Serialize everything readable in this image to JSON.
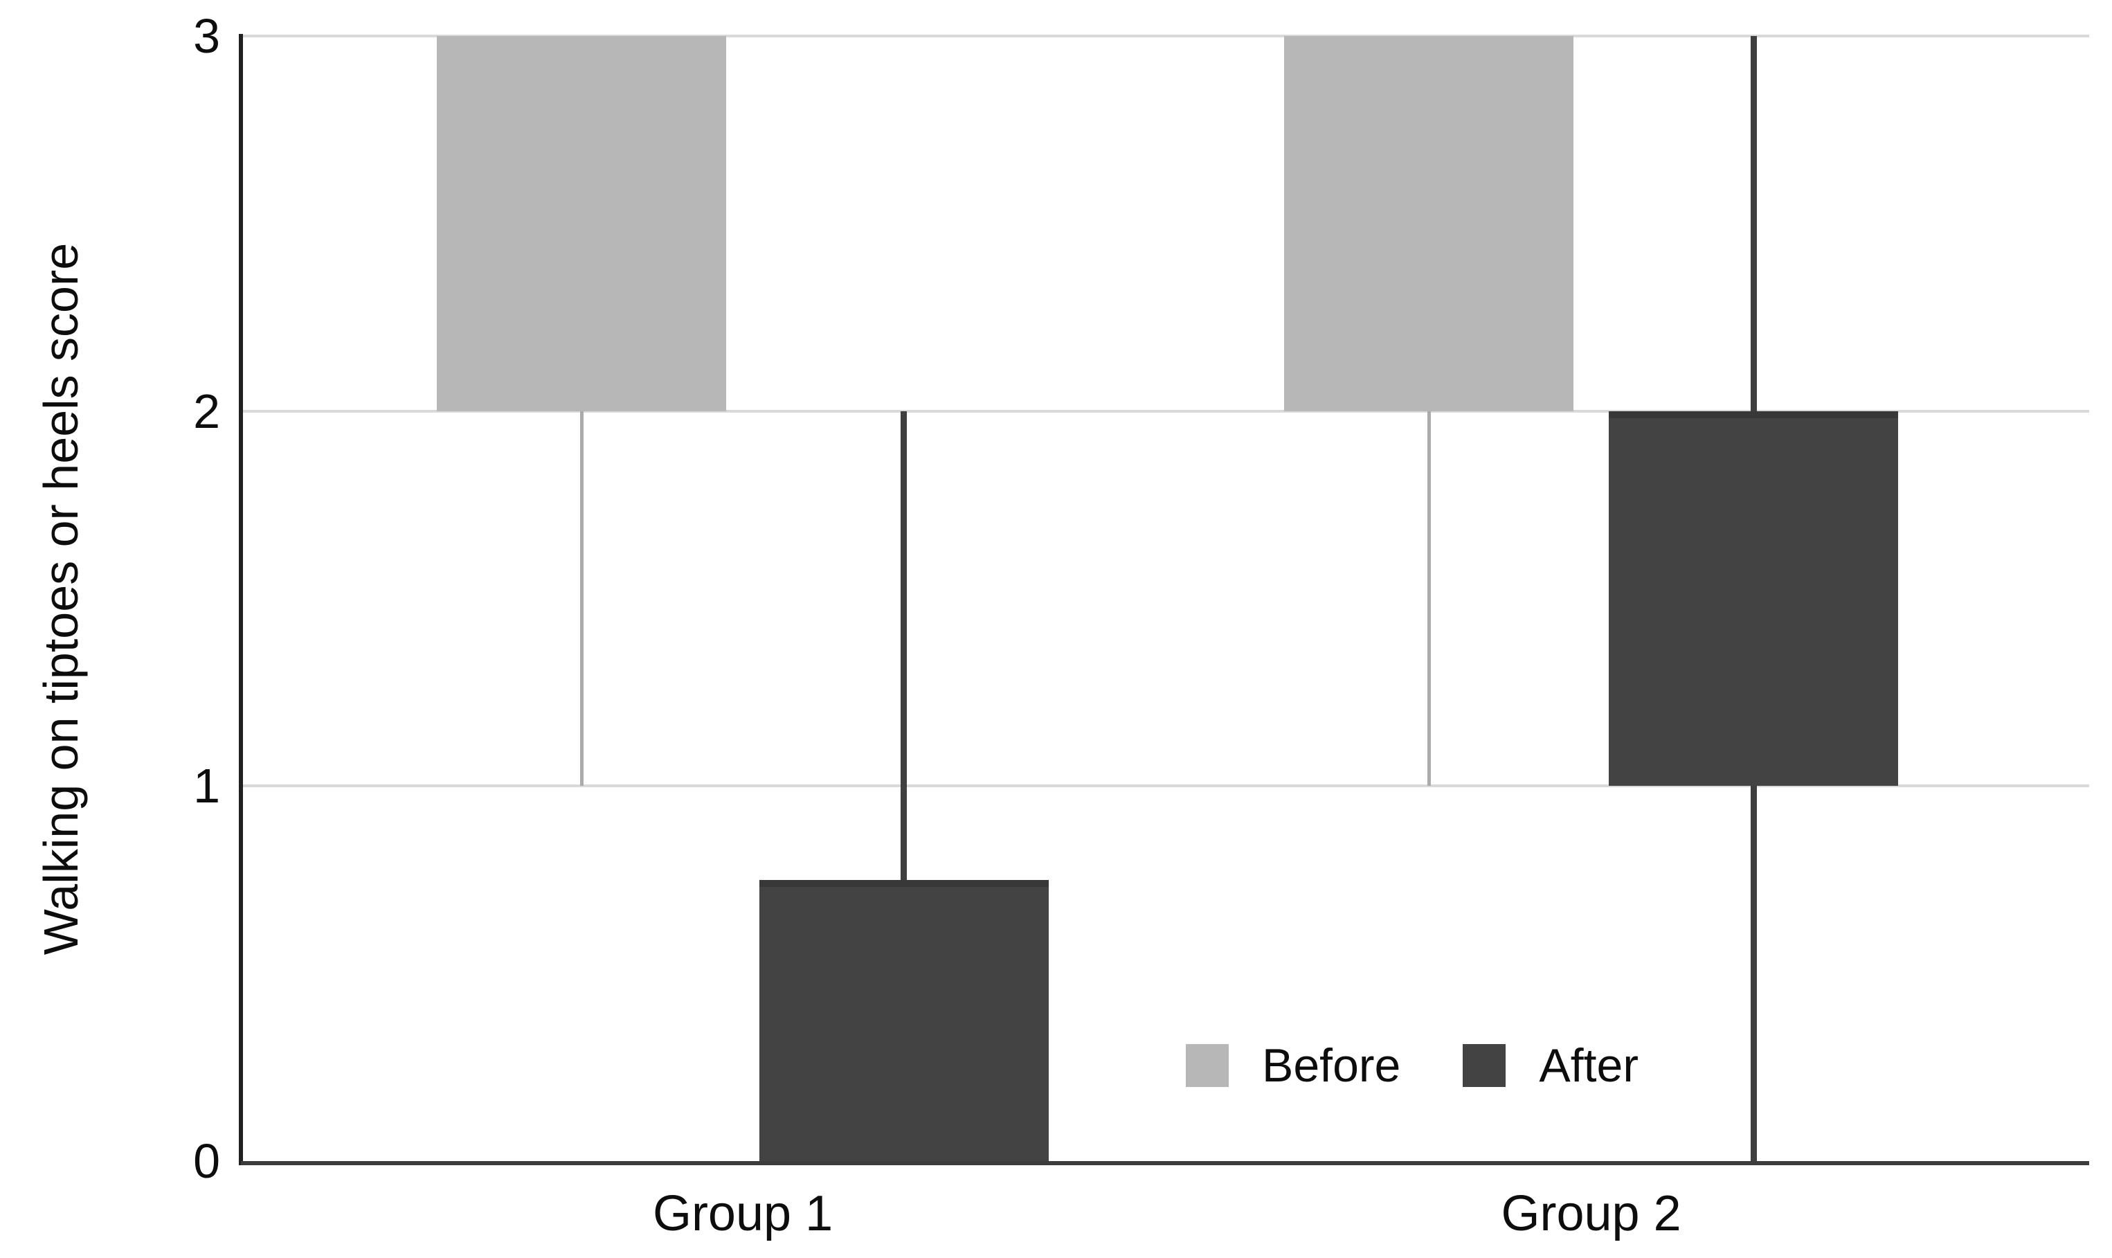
{
  "figure": {
    "ylabel": "Walking on tiptoes or heels score",
    "colors": {
      "before": "#b7b7b7",
      "before_whisker": "#ababab",
      "after": "#434343",
      "after_whisker": "#3f3f3f",
      "gridline": "#d9d9d9",
      "x_axis": "#3c3c3c",
      "y_axis": "#212121",
      "text": "#0d0d0d"
    }
  },
  "chart_data": {
    "type": "boxplot",
    "title": "",
    "xlabel": "",
    "ylabel": "Walking on tiptoes or heels score",
    "categories": [
      "Group 1",
      "Group 2"
    ],
    "yticks": [
      0,
      1,
      2,
      3
    ],
    "ylim": [
      0,
      3
    ],
    "grid": true,
    "legend_position": "inside-bottom-center-right",
    "legend": [
      "Before",
      "After"
    ],
    "series": [
      {
        "name": "Before",
        "color": "#b7b7b7",
        "whisker_color": "#ababab",
        "boxes": [
          {
            "category": "Group 1",
            "low": 1,
            "q1": 2,
            "q3": 3,
            "high": 3
          },
          {
            "category": "Group 2",
            "low": 1,
            "q1": 2,
            "q3": 3,
            "high": 3
          }
        ]
      },
      {
        "name": "After",
        "color": "#434343",
        "whisker_color": "#3f3f3f",
        "boxes": [
          {
            "category": "Group 1",
            "low": 0,
            "q1": 0,
            "q3": 0.75,
            "high": 2
          },
          {
            "category": "Group 2",
            "low": 0,
            "q1": 1,
            "q3": 2,
            "high": 3
          }
        ]
      }
    ]
  }
}
